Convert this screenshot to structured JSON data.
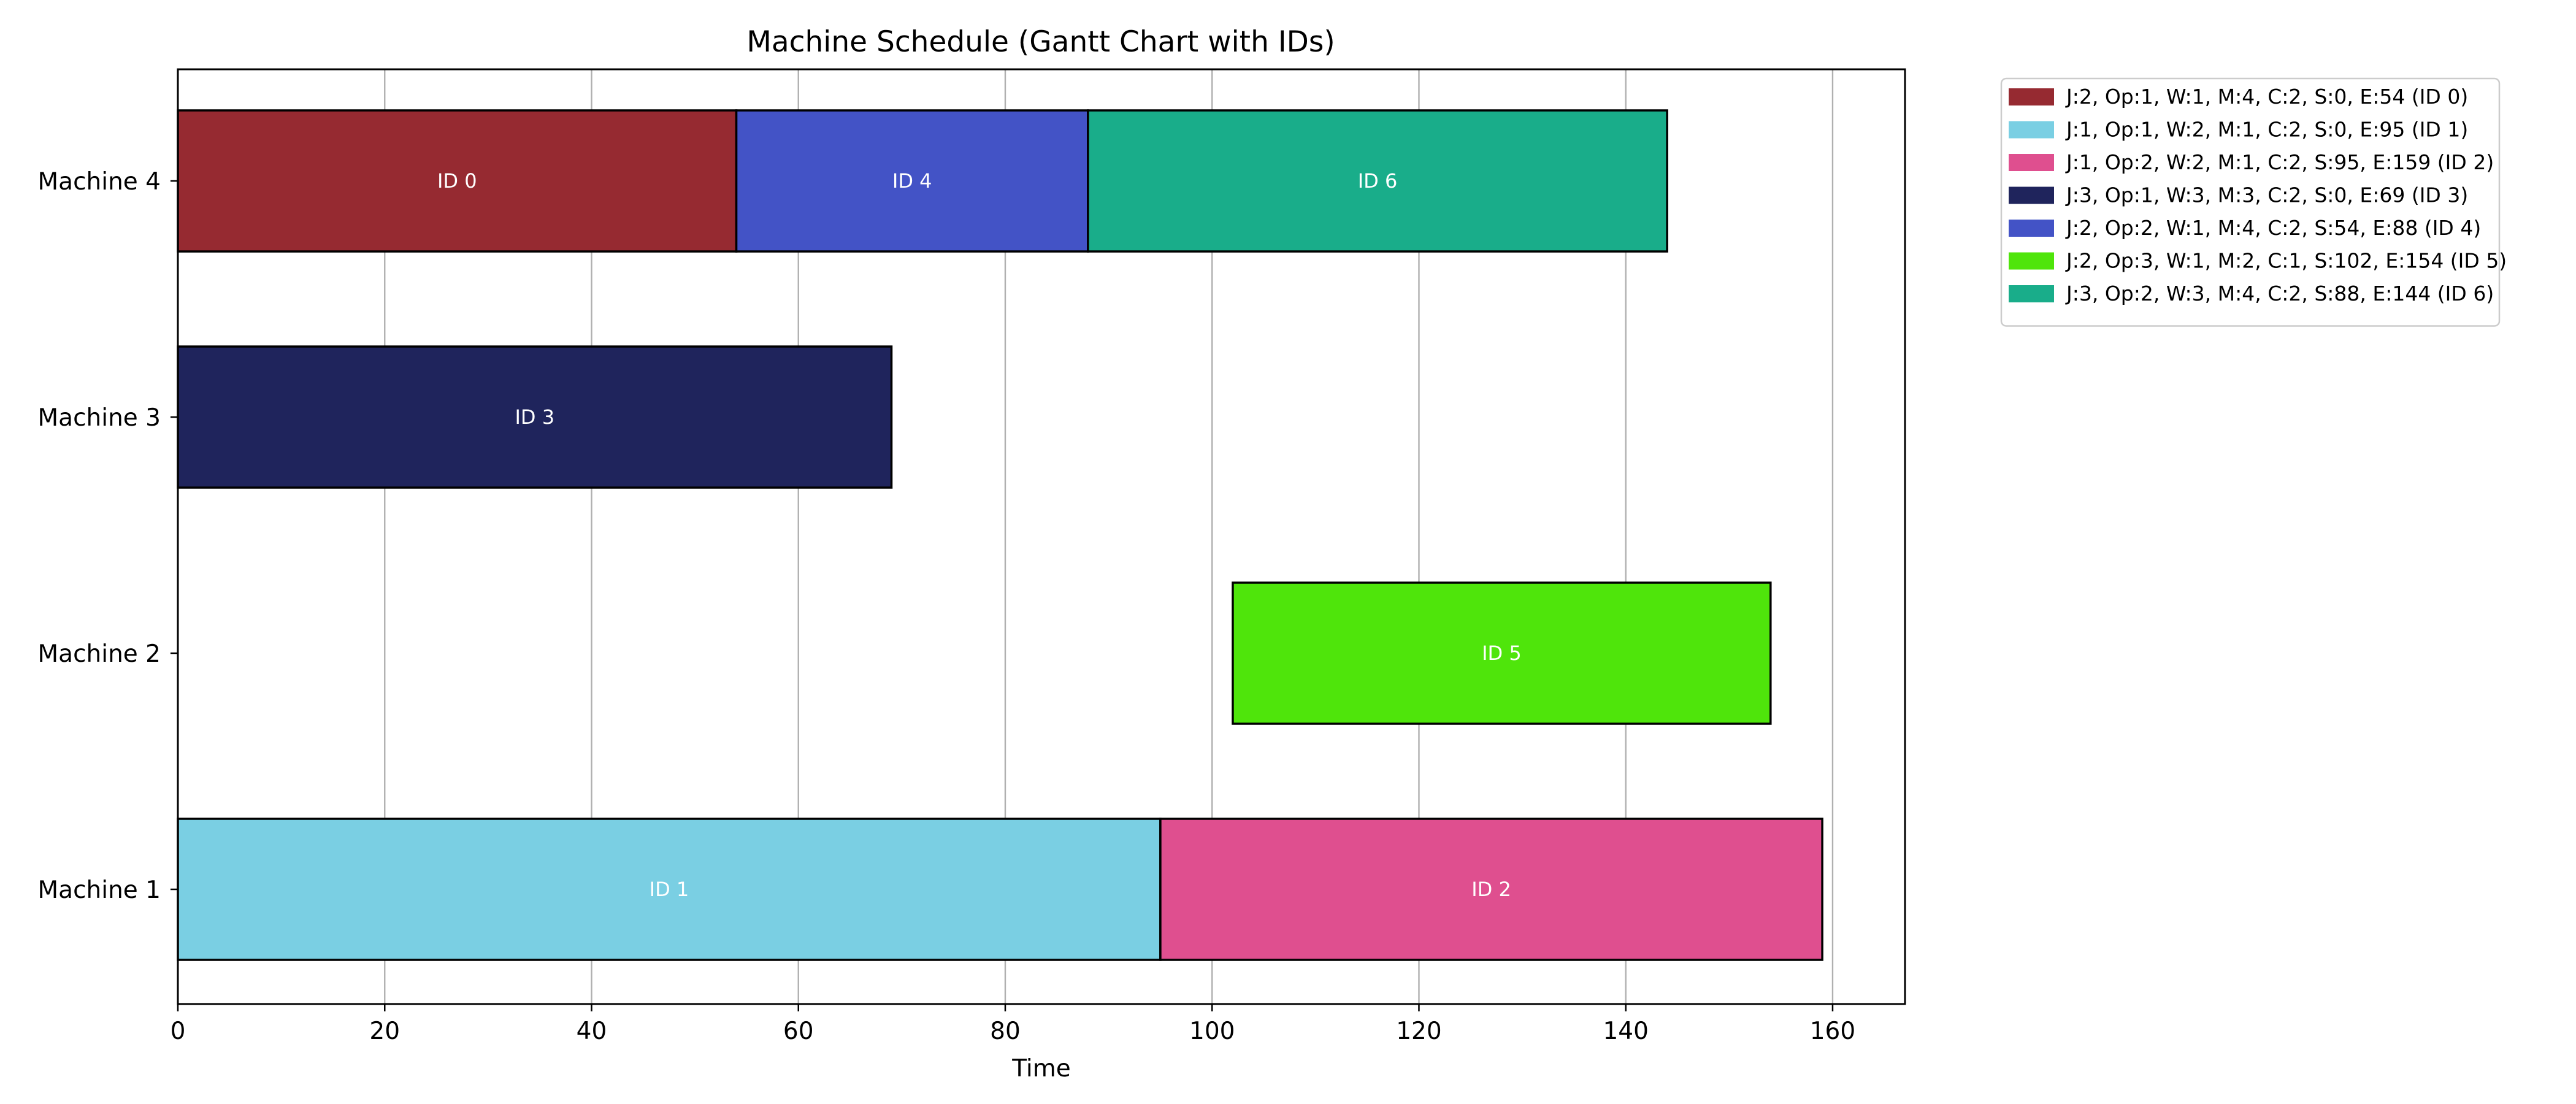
{
  "chart_data": {
    "type": "gantt",
    "title": "Machine Schedule (Gantt Chart with IDs)",
    "xlabel": "Time",
    "ylabel": "",
    "xlim": [
      0,
      167
    ],
    "xticks": [
      0,
      20,
      40,
      60,
      80,
      100,
      120,
      140,
      160
    ],
    "grid": "vertical",
    "legend_placement": "outside top-right",
    "categories": [
      "Machine 1",
      "Machine 2",
      "Machine 3",
      "Machine 4"
    ],
    "tasks": [
      {
        "id": 0,
        "label": "ID 0",
        "machine": 4,
        "start": 0,
        "end": 54,
        "color": "#962a31",
        "legend": "J:2, Op:1, W:1, M:4, C:2, S:0, E:54 (ID 0)"
      },
      {
        "id": 1,
        "label": "ID 1",
        "machine": 1,
        "start": 0,
        "end": 95,
        "color": "#7acfe3",
        "legend": "J:1, Op:1, W:2, M:1, C:2, S:0, E:95 (ID 1)"
      },
      {
        "id": 2,
        "label": "ID 2",
        "machine": 1,
        "start": 95,
        "end": 159,
        "color": "#df4f8f",
        "legend": "J:1, Op:2, W:2, M:1, C:2, S:95, E:159 (ID 2)"
      },
      {
        "id": 3,
        "label": "ID 3",
        "machine": 3,
        "start": 0,
        "end": 69,
        "color": "#1f245c",
        "legend": "J:3, Op:1, W:3, M:3, C:2, S:0, E:69 (ID 3)"
      },
      {
        "id": 4,
        "label": "ID 4",
        "machine": 4,
        "start": 54,
        "end": 88,
        "color": "#4353c6",
        "legend": "J:2, Op:2, W:1, M:4, C:2, S:54, E:88 (ID 4)"
      },
      {
        "id": 5,
        "label": "ID 5",
        "machine": 2,
        "start": 102,
        "end": 154,
        "color": "#4fe50b",
        "legend": "J:2, Op:3, W:1, M:2, C:1, S:102, E:154 (ID 5)"
      },
      {
        "id": 6,
        "label": "ID 6",
        "machine": 4,
        "start": 88,
        "end": 144,
        "color": "#19ad8a",
        "legend": "J:3, Op:2, W:3, M:4, C:2, S:88, E:144 (ID 6)"
      }
    ]
  }
}
